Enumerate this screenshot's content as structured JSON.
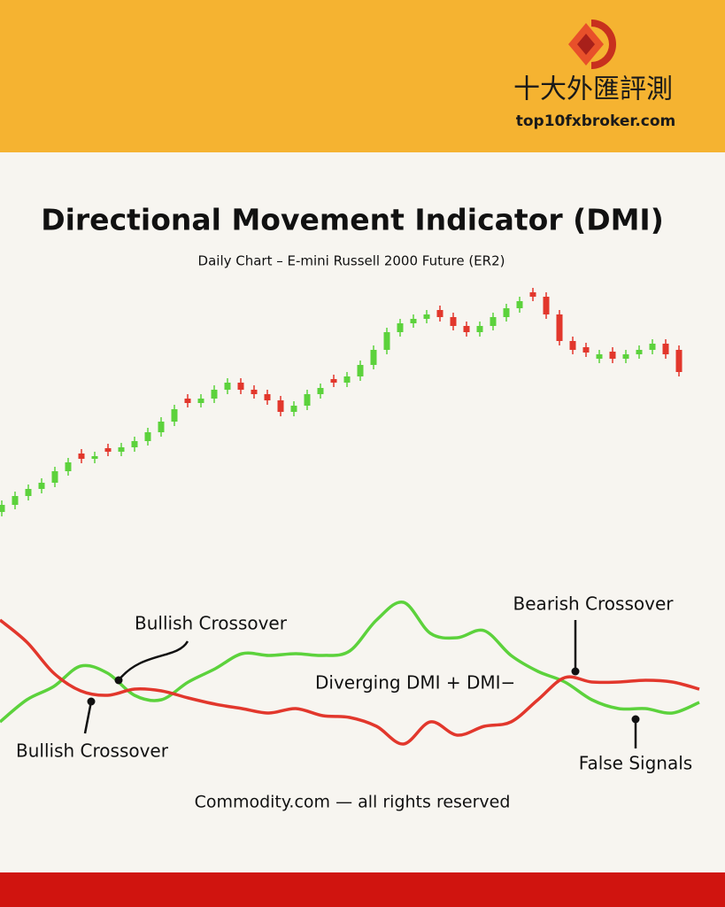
{
  "header": {
    "brand": "十大外匯評測",
    "site": "top10fxbroker.com"
  },
  "chart_data": [
    {
      "type": "candlestick",
      "title": "Directional Movement Indicator (DMI)",
      "subtitle": "Daily Chart – E-mini Russell 2000 Future (ER2)",
      "up_color": "#5cd23c",
      "down_color": "#e2372c",
      "ylim": [
        0,
        300
      ],
      "open": [
        22,
        30,
        40,
        48,
        55,
        68,
        88,
        82,
        94,
        90,
        95,
        102,
        112,
        124,
        150,
        145,
        150,
        160,
        168,
        160,
        155,
        148,
        135,
        142,
        155,
        172,
        168,
        175,
        188,
        205,
        225,
        235,
        240,
        250,
        242,
        232,
        225,
        232,
        242,
        252,
        270,
        265,
        245,
        215,
        208,
        195,
        203,
        195,
        200,
        205,
        212,
        205
      ],
      "high": [
        35,
        45,
        53,
        60,
        73,
        83,
        93,
        90,
        99,
        100,
        107,
        117,
        129,
        143,
        155,
        155,
        165,
        173,
        173,
        165,
        160,
        153,
        147,
        160,
        167,
        177,
        180,
        193,
        210,
        230,
        240,
        245,
        250,
        255,
        247,
        237,
        237,
        247,
        257,
        265,
        275,
        270,
        250,
        220,
        213,
        205,
        208,
        205,
        210,
        217,
        217,
        210
      ],
      "low": [
        17,
        25,
        35,
        43,
        50,
        63,
        77,
        77,
        85,
        85,
        90,
        97,
        107,
        119,
        140,
        140,
        145,
        155,
        155,
        150,
        143,
        130,
        130,
        137,
        150,
        163,
        163,
        170,
        183,
        200,
        220,
        230,
        235,
        237,
        227,
        220,
        220,
        227,
        237,
        247,
        260,
        240,
        210,
        200,
        197,
        190,
        190,
        190,
        195,
        200,
        195,
        175
      ],
      "close": [
        30,
        40,
        48,
        55,
        68,
        78,
        82,
        85,
        90,
        95,
        102,
        112,
        124,
        138,
        145,
        150,
        160,
        168,
        160,
        155,
        148,
        135,
        142,
        155,
        162,
        168,
        175,
        188,
        205,
        225,
        235,
        240,
        245,
        242,
        232,
        225,
        232,
        242,
        252,
        260,
        265,
        245,
        215,
        205,
        202,
        200,
        195,
        200,
        205,
        212,
        200,
        180
      ]
    },
    {
      "type": "line",
      "ylim": [
        0,
        100
      ],
      "series": [
        {
          "color": "#5cd23c",
          "values": [
            22.5,
            35,
            42.5,
            54,
            50,
            37.5,
            35,
            45,
            52.5,
            61,
            60,
            61,
            60,
            62.5,
            80,
            90,
            72.5,
            70,
            74,
            60,
            51,
            45,
            35,
            30,
            30,
            27.5,
            33.5
          ]
        },
        {
          "color": "#e2372c",
          "values": [
            80,
            67.5,
            50,
            40,
            37.5,
            41,
            40,
            36,
            32.5,
            30,
            27.5,
            30,
            26,
            25,
            20,
            10,
            22.5,
            15,
            20,
            22.5,
            35,
            47.5,
            45,
            45,
            46,
            45,
            41
          ]
        }
      ],
      "annotations": [
        "Bullish Crossover",
        "Bullish Crossover",
        "Bearish Crossover",
        "Diverging DMI + DMI−",
        "False Signals"
      ]
    }
  ],
  "footer": "Commodity.com — all rights reserved"
}
